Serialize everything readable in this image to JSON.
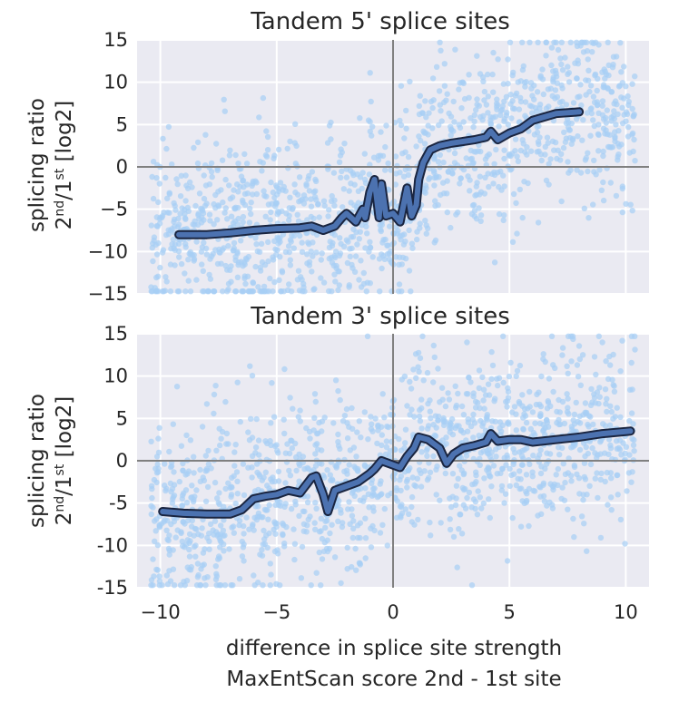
{
  "colors": {
    "panel_bg": "#eaeaf2",
    "grid": "#ffffff",
    "scatter": "#a6cff5",
    "trend_fill": "#4c72b0",
    "trend_edge": "#1a2540",
    "zero_lines": "#808080"
  },
  "chart_data": [
    {
      "type": "scatter",
      "title": "Tandem 5' splice sites",
      "ylabel_line1": "splicing ratio",
      "ylabel_line2": {
        "a": "2",
        "b": "nd",
        "c": "/1",
        "d": "st",
        "e": " [log2]"
      },
      "xlim": [
        -11,
        11
      ],
      "ylim": [
        -15,
        15
      ],
      "xticks": [
        -10,
        -5,
        0,
        5,
        10
      ],
      "yticks": [
        15,
        10,
        5,
        0,
        -5,
        -10,
        -15
      ],
      "ytick_labels": [
        "15",
        "10",
        "5",
        "0",
        "−5",
        "−10",
        "−15"
      ],
      "grid": true,
      "zero_lines": true,
      "scatter_description_seed": 5,
      "trend": {
        "x": [
          -9.2,
          -8,
          -7,
          -6,
          -5,
          -4,
          -3.5,
          -3,
          -2.5,
          -2.2,
          -2,
          -1.6,
          -1.3,
          -1.2,
          -1.0,
          -0.8,
          -0.6,
          -0.5,
          -0.3,
          0,
          0.3,
          0.6,
          0.8,
          1.0,
          1.1,
          1.3,
          1.6,
          2.0,
          2.5,
          3,
          3.5,
          4.0,
          4.2,
          4.5,
          5,
          5.5,
          6,
          7,
          8.0
        ],
        "y": [
          -8,
          -8,
          -7.8,
          -7.5,
          -7.3,
          -7.2,
          -7.0,
          -7.5,
          -7.0,
          -6,
          -5.5,
          -6.5,
          -5,
          -6,
          -3,
          -1.5,
          -6,
          -2,
          -5.8,
          -5.5,
          -6.5,
          -2.5,
          -5.8,
          -4.5,
          -1.5,
          0.5,
          2,
          2.5,
          2.8,
          3,
          3.2,
          3.5,
          4.2,
          3.2,
          4,
          4.5,
          5.5,
          6.3,
          6.5
        ]
      }
    },
    {
      "type": "scatter",
      "title": "Tandem 3' splice sites",
      "ylabel_line1": "splicing ratio",
      "ylabel_line2": {
        "a": "2",
        "b": "nd",
        "c": "/1",
        "d": "st",
        "e": " [log2]"
      },
      "xlim": [
        -11,
        11
      ],
      "ylim": [
        -15,
        15
      ],
      "xticks": [
        -10,
        -5,
        0,
        5,
        10
      ],
      "xtick_labels": [
        "−10",
        "−5",
        "0",
        "5",
        "10"
      ],
      "yticks": [
        15,
        10,
        5,
        0,
        -5,
        -10,
        -15
      ],
      "ytick_labels": [
        "15",
        "10",
        "5",
        "0",
        "-5",
        "-10",
        "-15"
      ],
      "xlabel_line1": "difference in splice site strength",
      "xlabel_line2": "MaxEntScan score 2nd - 1st site",
      "grid": true,
      "zero_lines": true,
      "scatter_description_seed": 3,
      "trend": {
        "x": [
          -9.9,
          -9,
          -8,
          -7,
          -6.5,
          -6,
          -5.5,
          -5,
          -4.5,
          -4,
          -3.5,
          -3.3,
          -3,
          -2.8,
          -2.5,
          -2,
          -1.5,
          -1,
          -0.8,
          -0.5,
          0,
          0.3,
          0.6,
          0.9,
          1.1,
          1.5,
          2.0,
          2.3,
          2.6,
          3,
          3.5,
          4,
          4.2,
          4.5,
          5,
          5.5,
          6,
          7,
          8,
          9,
          10.2
        ],
        "y": [
          -6,
          -6.2,
          -6.3,
          -6.3,
          -5.8,
          -4.5,
          -4.2,
          -4,
          -3.5,
          -3.8,
          -2,
          -1.8,
          -4,
          -6,
          -3.5,
          -3,
          -2.5,
          -1.5,
          -1,
          0,
          -0.5,
          -0.8,
          0.5,
          1.5,
          2.8,
          2.5,
          1.5,
          -0.3,
          0.8,
          1.5,
          1.8,
          2.2,
          3.2,
          2.3,
          2.5,
          2.5,
          2.2,
          2.5,
          2.8,
          3.2,
          3.5
        ]
      }
    }
  ]
}
